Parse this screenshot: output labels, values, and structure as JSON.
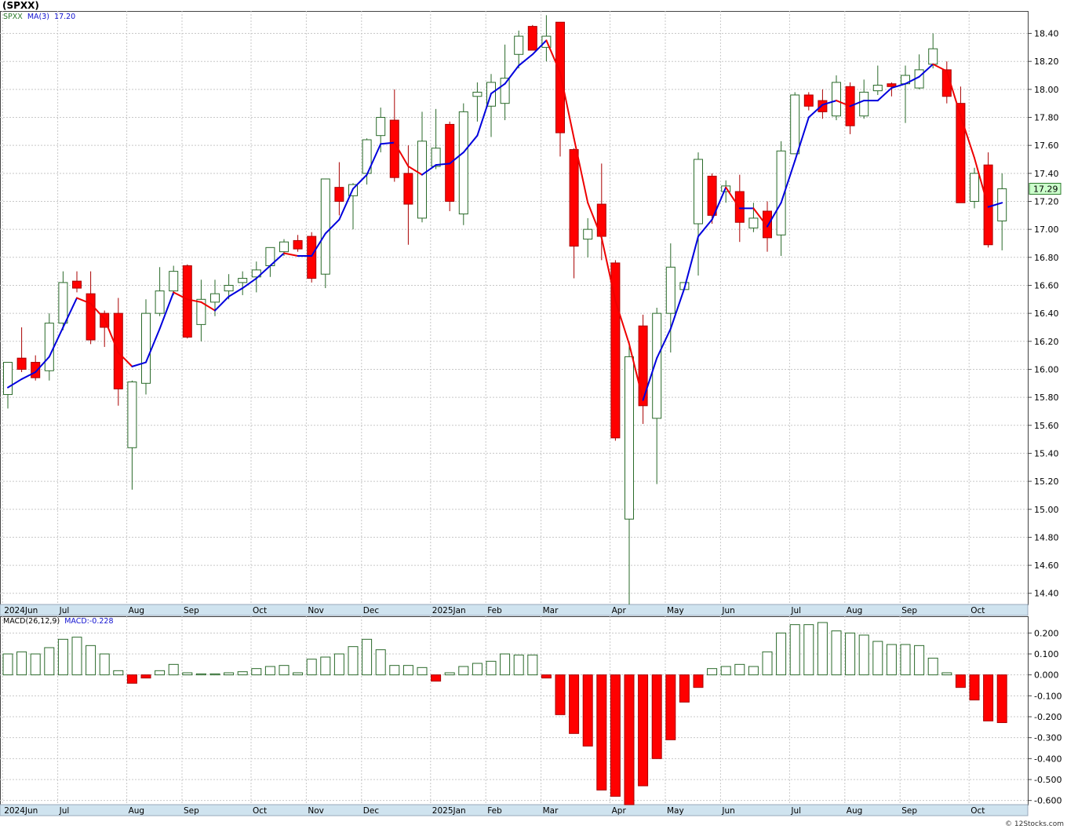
{
  "header": {
    "title": "(SPXX)",
    "symbol_label": "SPXX",
    "ma_label": "MA(3)",
    "ma_value": "17.20",
    "macd_label": "MACD(26,12,9)",
    "macd_value_label": "MACD:-0.228",
    "footer": "© 12Stocks.com"
  },
  "colors": {
    "up_candle_fill": "#ffffff",
    "up_candle_stroke": "#2a6a2a",
    "down_candle_fill": "#ff0000",
    "down_candle_stroke": "#aa0000",
    "ma_up": "#0000dd",
    "ma_down": "#ee0000",
    "axis_band": "#cfe3ef",
    "last_price_box": "#ccffcc"
  },
  "chart_data": [
    {
      "type": "candlestick",
      "title": "(SPXX)",
      "interval": "weekly",
      "ylim": [
        14.32,
        18.56
      ],
      "yticks": [
        "14.40",
        "14.60",
        "14.80",
        "15.00",
        "15.20",
        "15.40",
        "15.60",
        "15.80",
        "16.00",
        "16.20",
        "16.40",
        "16.60",
        "16.80",
        "17.00",
        "17.20",
        "17.40",
        "17.60",
        "17.80",
        "18.00",
        "18.20",
        "18.40"
      ],
      "last_price_label": "17.29",
      "grid": true,
      "x_labels": [
        {
          "label": "2024Jun",
          "week": 0
        },
        {
          "label": "Jul",
          "week": 4
        },
        {
          "label": "Aug",
          "week": 9
        },
        {
          "label": "Sep",
          "week": 13
        },
        {
          "label": "Oct",
          "week": 18
        },
        {
          "label": "Nov",
          "week": 22
        },
        {
          "label": "Dec",
          "week": 26
        },
        {
          "label": "2025Jan",
          "week": 31
        },
        {
          "label": "Feb",
          "week": 35
        },
        {
          "label": "Mar",
          "week": 39
        },
        {
          "label": "Apr",
          "week": 44
        },
        {
          "label": "May",
          "week": 48
        },
        {
          "label": "Jun",
          "week": 52
        },
        {
          "label": "Jul",
          "week": 57
        },
        {
          "label": "Aug",
          "week": 61
        },
        {
          "label": "Sep",
          "week": 65
        },
        {
          "label": "Oct",
          "week": 70
        }
      ],
      "candles": [
        {
          "o": 15.82,
          "h": 16.04,
          "l": 15.72,
          "c": 16.05
        },
        {
          "o": 16.08,
          "h": 16.3,
          "l": 15.98,
          "c": 16.0
        },
        {
          "o": 16.05,
          "h": 16.1,
          "l": 15.92,
          "c": 15.94
        },
        {
          "o": 15.99,
          "h": 16.4,
          "l": 15.92,
          "c": 16.33
        },
        {
          "o": 16.33,
          "h": 16.7,
          "l": 16.28,
          "c": 16.62
        },
        {
          "o": 16.63,
          "h": 16.7,
          "l": 16.55,
          "c": 16.58
        },
        {
          "o": 16.54,
          "h": 16.7,
          "l": 16.18,
          "c": 16.21
        },
        {
          "o": 16.4,
          "h": 16.42,
          "l": 16.16,
          "c": 16.3
        },
        {
          "o": 16.4,
          "h": 16.51,
          "l": 15.74,
          "c": 15.86
        },
        {
          "o": 15.44,
          "h": 15.92,
          "l": 15.14,
          "c": 15.91
        },
        {
          "o": 15.9,
          "h": 16.5,
          "l": 15.82,
          "c": 16.4
        },
        {
          "o": 16.4,
          "h": 16.73,
          "l": 16.38,
          "c": 16.56
        },
        {
          "o": 16.56,
          "h": 16.74,
          "l": 16.53,
          "c": 16.7
        },
        {
          "o": 16.74,
          "h": 16.75,
          "l": 16.22,
          "c": 16.23
        },
        {
          "o": 16.32,
          "h": 16.64,
          "l": 16.2,
          "c": 16.5
        },
        {
          "o": 16.48,
          "h": 16.64,
          "l": 16.38,
          "c": 16.54
        },
        {
          "o": 16.56,
          "h": 16.68,
          "l": 16.5,
          "c": 16.6
        },
        {
          "o": 16.62,
          "h": 16.7,
          "l": 16.53,
          "c": 16.65
        },
        {
          "o": 16.66,
          "h": 16.77,
          "l": 16.55,
          "c": 16.71
        },
        {
          "o": 16.74,
          "h": 16.87,
          "l": 16.66,
          "c": 16.87
        },
        {
          "o": 16.84,
          "h": 16.93,
          "l": 16.81,
          "c": 16.91
        },
        {
          "o": 16.92,
          "h": 16.96,
          "l": 16.84,
          "c": 16.86
        },
        {
          "o": 16.95,
          "h": 16.98,
          "l": 16.62,
          "c": 16.65
        },
        {
          "o": 16.68,
          "h": 17.36,
          "l": 16.58,
          "c": 17.36
        },
        {
          "o": 17.3,
          "h": 17.48,
          "l": 17.1,
          "c": 17.2
        },
        {
          "o": 17.24,
          "h": 17.33,
          "l": 17.0,
          "c": 17.32
        },
        {
          "o": 17.4,
          "h": 17.65,
          "l": 17.32,
          "c": 17.64
        },
        {
          "o": 17.67,
          "h": 17.87,
          "l": 17.55,
          "c": 17.8
        },
        {
          "o": 17.78,
          "h": 18.0,
          "l": 17.34,
          "c": 17.37
        },
        {
          "o": 17.4,
          "h": 17.6,
          "l": 16.89,
          "c": 17.18
        },
        {
          "o": 17.08,
          "h": 17.84,
          "l": 17.05,
          "c": 17.63
        },
        {
          "o": 17.45,
          "h": 17.86,
          "l": 17.43,
          "c": 17.58
        },
        {
          "o": 17.75,
          "h": 17.77,
          "l": 17.13,
          "c": 17.2
        },
        {
          "o": 17.11,
          "h": 17.9,
          "l": 17.03,
          "c": 17.84
        },
        {
          "o": 17.95,
          "h": 18.05,
          "l": 17.77,
          "c": 17.98
        },
        {
          "o": 17.88,
          "h": 18.11,
          "l": 17.66,
          "c": 18.05
        },
        {
          "o": 17.9,
          "h": 18.32,
          "l": 17.78,
          "c": 18.08
        },
        {
          "o": 18.25,
          "h": 18.42,
          "l": 18.15,
          "c": 18.38
        },
        {
          "o": 18.45,
          "h": 18.46,
          "l": 18.28,
          "c": 18.28
        },
        {
          "o": 18.3,
          "h": 18.53,
          "l": 18.2,
          "c": 18.38
        },
        {
          "o": 18.48,
          "h": 18.48,
          "l": 17.52,
          "c": 17.69
        },
        {
          "o": 17.57,
          "h": 17.58,
          "l": 16.65,
          "c": 16.88
        },
        {
          "o": 16.93,
          "h": 17.08,
          "l": 16.8,
          "c": 17.0
        },
        {
          "o": 17.18,
          "h": 17.47,
          "l": 16.78,
          "c": 16.95
        },
        {
          "o": 16.76,
          "h": 16.78,
          "l": 15.49,
          "c": 15.51
        },
        {
          "o": 14.93,
          "h": 16.2,
          "l": 14.32,
          "c": 16.09
        },
        {
          "o": 16.31,
          "h": 16.39,
          "l": 15.61,
          "c": 15.74
        },
        {
          "o": 15.65,
          "h": 16.44,
          "l": 15.18,
          "c": 16.4
        },
        {
          "o": 16.4,
          "h": 16.9,
          "l": 16.12,
          "c": 16.73
        },
        {
          "o": 16.57,
          "h": 16.61,
          "l": 16.57,
          "c": 16.62
        },
        {
          "o": 17.04,
          "h": 17.55,
          "l": 16.67,
          "c": 17.5
        },
        {
          "o": 17.38,
          "h": 17.4,
          "l": 17.04,
          "c": 17.1
        },
        {
          "o": 17.27,
          "h": 17.35,
          "l": 17.19,
          "c": 17.31
        },
        {
          "o": 17.27,
          "h": 17.39,
          "l": 16.91,
          "c": 17.05
        },
        {
          "o": 17.01,
          "h": 17.19,
          "l": 16.98,
          "c": 17.08
        },
        {
          "o": 17.13,
          "h": 17.2,
          "l": 16.84,
          "c": 16.94
        },
        {
          "o": 16.96,
          "h": 17.63,
          "l": 16.81,
          "c": 17.56
        },
        {
          "o": 17.54,
          "h": 17.98,
          "l": 17.54,
          "c": 17.96
        },
        {
          "o": 17.96,
          "h": 17.98,
          "l": 17.85,
          "c": 17.88
        },
        {
          "o": 17.92,
          "h": 18.0,
          "l": 17.79,
          "c": 17.84
        },
        {
          "o": 17.81,
          "h": 18.1,
          "l": 17.78,
          "c": 18.05
        },
        {
          "o": 18.02,
          "h": 18.05,
          "l": 17.68,
          "c": 17.74
        },
        {
          "o": 17.81,
          "h": 18.07,
          "l": 17.79,
          "c": 17.98
        },
        {
          "o": 17.99,
          "h": 18.17,
          "l": 17.96,
          "c": 18.03
        },
        {
          "o": 18.04,
          "h": 18.05,
          "l": 17.95,
          "c": 18.02
        },
        {
          "o": 18.04,
          "h": 18.17,
          "l": 17.76,
          "c": 18.1
        },
        {
          "o": 18.01,
          "h": 18.25,
          "l": 18.0,
          "c": 18.14
        },
        {
          "o": 18.18,
          "h": 18.4,
          "l": 18.15,
          "c": 18.29
        },
        {
          "o": 18.14,
          "h": 18.2,
          "l": 17.9,
          "c": 17.95
        },
        {
          "o": 17.9,
          "h": 18.02,
          "l": 17.19,
          "c": 17.19
        },
        {
          "o": 17.2,
          "h": 17.44,
          "l": 17.15,
          "c": 17.4
        },
        {
          "o": 17.46,
          "h": 17.55,
          "l": 16.87,
          "c": 16.89
        },
        {
          "o": 17.06,
          "h": 17.4,
          "l": 16.85,
          "c": 17.29
        }
      ],
      "ma": {
        "name": "MA(3)",
        "values": [
          15.87,
          15.93,
          15.98,
          16.09,
          16.3,
          16.51,
          16.47,
          16.36,
          16.12,
          16.02,
          16.05,
          16.29,
          16.55,
          16.5,
          16.48,
          16.42,
          16.52,
          16.58,
          16.65,
          16.74,
          16.83,
          16.81,
          16.81,
          16.97,
          17.07,
          17.29,
          17.39,
          17.61,
          17.62,
          17.45,
          17.39,
          17.46,
          17.47,
          17.55,
          17.67,
          17.97,
          18.04,
          18.17,
          18.25,
          18.35,
          18.12,
          17.65,
          17.19,
          16.94,
          16.49,
          16.18,
          15.78,
          16.08,
          16.29,
          16.58,
          16.95,
          17.07,
          17.3,
          17.15,
          17.15,
          17.02,
          17.19,
          17.49,
          17.8,
          17.89,
          17.92,
          17.88,
          17.92,
          17.92,
          18.01,
          18.04,
          18.09,
          18.18,
          18.13,
          17.81,
          17.51,
          17.16,
          17.19
        ]
      }
    },
    {
      "type": "bar",
      "title": "MACD(26,12,9)",
      "current_value": -0.228,
      "ylim": [
        -0.62,
        0.28
      ],
      "yticks": [
        "0.200",
        "0.100",
        "0.000",
        "-0.100",
        "-0.200",
        "-0.300",
        "-0.400",
        "-0.500",
        "-0.600"
      ],
      "values": [
        0.1,
        0.11,
        0.1,
        0.13,
        0.17,
        0.18,
        0.14,
        0.1,
        0.02,
        -0.04,
        -0.015,
        0.02,
        0.05,
        0.01,
        0.005,
        0.005,
        0.01,
        0.015,
        0.03,
        0.04,
        0.045,
        0.01,
        0.075,
        0.085,
        0.1,
        0.135,
        0.17,
        0.12,
        0.045,
        0.045,
        0.035,
        -0.03,
        0.01,
        0.04,
        0.055,
        0.065,
        0.1,
        0.095,
        0.095,
        -0.015,
        -0.19,
        -0.28,
        -0.34,
        -0.55,
        -0.58,
        -0.62,
        -0.53,
        -0.4,
        -0.31,
        -0.13,
        -0.06,
        0.03,
        0.04,
        0.05,
        0.04,
        0.11,
        0.2,
        0.24,
        0.24,
        0.25,
        0.21,
        0.2,
        0.19,
        0.16,
        0.145,
        0.145,
        0.14,
        0.08,
        0.01,
        -0.06,
        -0.12,
        -0.22,
        -0.228
      ]
    }
  ]
}
